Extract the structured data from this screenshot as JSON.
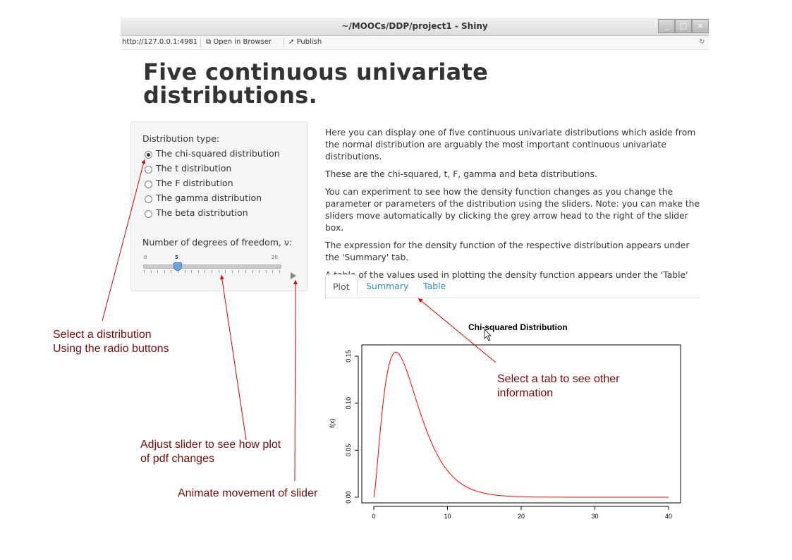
{
  "window": {
    "title": "~/MOOCs/DDP/project1 - Shiny",
    "buttons": [
      "_",
      "□",
      "×"
    ],
    "url": "http://127.0.0.1:4981",
    "open_in_browser": "Open in Browser",
    "publish": "Publish"
  },
  "page": {
    "title": "Five continuous univariate distributions."
  },
  "sidebar": {
    "distribution_label": "Distribution type:",
    "options": [
      {
        "label": "The chi-squared distribution",
        "checked": true
      },
      {
        "label": "The t distribution",
        "checked": false
      },
      {
        "label": "The F distribution",
        "checked": false
      },
      {
        "label": "The gamma distribution",
        "checked": false
      },
      {
        "label": "The beta distribution",
        "checked": false
      }
    ],
    "slider_label": "Number of degrees of freedom, ν:",
    "slider": {
      "min": "0",
      "value": "5",
      "max": "20"
    }
  },
  "main": {
    "paragraphs": [
      "Here you can display one of five continuous univariate distributions which aside from the normal distribution are arguably the most important continuous univariate distributions.",
      "These are the chi-squared, t, F, gamma and beta distributions.",
      "You can experiment to see how the density function changes as you change the parameter or parameters of the distribution using the sliders. Note: you can make the sliders move automatically by clicking the grey arrow head to the right of the slider box.",
      "The expression for the density function of the respective distribution appears under the 'Summary' tab.",
      "A table of the values used in plotting the density function appears under the 'Table' tab."
    ],
    "tabs": [
      "Plot",
      "Summary",
      "Table"
    ],
    "active_tab": "Plot"
  },
  "plot": {
    "title": "Chi-squared Distribution",
    "ylabel": "f(x)",
    "x_ticks": [
      "0",
      "10",
      "20",
      "30",
      "40"
    ],
    "y_ticks": [
      "0.00",
      "0.05",
      "0.10",
      "0.15"
    ]
  },
  "chart_data": {
    "type": "line",
    "title": "Chi-squared Distribution",
    "xlabel": "",
    "ylabel": "f(x)",
    "xlim": [
      0,
      40
    ],
    "ylim": [
      0,
      0.16
    ],
    "series": [
      {
        "df": 5,
        "color": "#ff0000"
      }
    ]
  },
  "annotations": {
    "radio": [
      "Select a distribution",
      "Using the radio buttons"
    ],
    "tab": [
      "Select a tab to see other",
      "information"
    ],
    "slider": [
      "Adjust slider to see how plot",
      "of pdf changes"
    ],
    "animate": "Animate movement of slider"
  },
  "colors": {
    "annotation_text": "#7a0a0a",
    "arrow": "#dd0000",
    "curve": "#ff0000",
    "tab_link": "#2a8fc4"
  }
}
